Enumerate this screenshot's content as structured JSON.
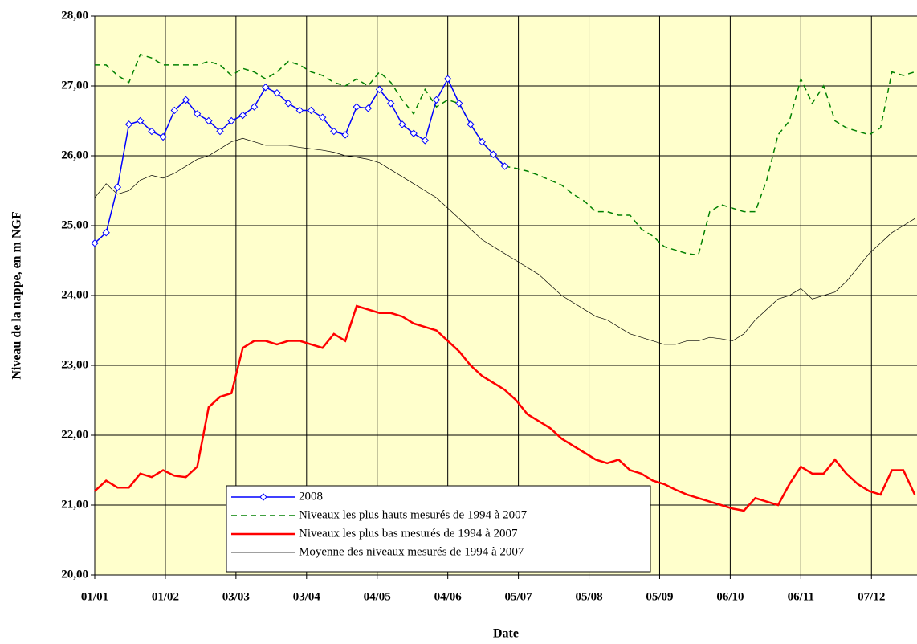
{
  "chart_data": {
    "type": "line",
    "xlabel": "Date",
    "ylabel": "Niveau de la nappe, en m NGF",
    "x": [
      0,
      5,
      10,
      15,
      20,
      25,
      30,
      35,
      40,
      45,
      50,
      55,
      60,
      65,
      70,
      75,
      80,
      85,
      90,
      95,
      100,
      105,
      110,
      115,
      120,
      125,
      130,
      135,
      140,
      145,
      150,
      155,
      160,
      165,
      170,
      175,
      180,
      185,
      190,
      195,
      200,
      205,
      210,
      215,
      220,
      225,
      230,
      235,
      240,
      245,
      250,
      255,
      260,
      265,
      270,
      275,
      280,
      285,
      290,
      295,
      300,
      305,
      310,
      315,
      320,
      325,
      330,
      335,
      340,
      345,
      350,
      355,
      360
    ],
    "xlim": [
      0,
      361
    ],
    "xticks": [
      {
        "value": 0,
        "label": "01/01"
      },
      {
        "value": 31,
        "label": "01/02"
      },
      {
        "value": 62,
        "label": "03/03"
      },
      {
        "value": 93,
        "label": "03/04"
      },
      {
        "value": 124,
        "label": "04/05"
      },
      {
        "value": 155,
        "label": "04/06"
      },
      {
        "value": 186,
        "label": "05/07"
      },
      {
        "value": 217,
        "label": "05/08"
      },
      {
        "value": 248,
        "label": "05/09"
      },
      {
        "value": 279,
        "label": "06/10"
      },
      {
        "value": 310,
        "label": "06/11"
      },
      {
        "value": 341,
        "label": "07/12"
      }
    ],
    "ylim": [
      20,
      28
    ],
    "yticks": [
      {
        "value": 20,
        "label": "20,00"
      },
      {
        "value": 21,
        "label": "21,00"
      },
      {
        "value": 22,
        "label": "22,00"
      },
      {
        "value": 23,
        "label": "23,00"
      },
      {
        "value": 24,
        "label": "24,00"
      },
      {
        "value": 25,
        "label": "25,00"
      },
      {
        "value": 26,
        "label": "26,00"
      },
      {
        "value": 27,
        "label": "27,00"
      },
      {
        "value": 28,
        "label": "28,00"
      }
    ],
    "grid": true,
    "background": "#ffffcc",
    "legend": "lower center",
    "series": [
      {
        "name": "2008",
        "color": "#0000ff",
        "style": "solid",
        "width": 1.5,
        "marker": "diamond",
        "values": [
          24.75,
          24.9,
          25.55,
          26.45,
          26.5,
          26.35,
          26.27,
          26.65,
          26.8,
          26.6,
          26.5,
          26.35,
          26.5,
          26.58,
          26.7,
          26.98,
          26.9,
          26.75,
          26.65,
          26.65,
          26.55,
          26.35,
          26.3,
          26.7,
          26.68,
          26.95,
          26.75,
          26.45,
          26.32,
          26.22,
          26.8,
          27.1,
          26.75,
          26.45,
          26.2,
          26.02,
          25.85,
          null,
          null,
          null,
          null,
          null,
          null,
          null,
          null,
          null,
          null,
          null,
          null,
          null,
          null,
          null,
          null,
          null,
          null,
          null,
          null,
          null,
          null,
          null,
          null,
          null,
          null,
          null,
          null,
          null,
          null,
          null,
          null,
          null,
          null,
          null,
          null
        ]
      },
      {
        "name": "Niveaux les plus hauts mesurés de 1994 à 2007",
        "color": "#008000",
        "style": "dashed",
        "width": 1.5,
        "values": [
          27.3,
          27.3,
          27.15,
          27.05,
          27.45,
          27.4,
          27.3,
          27.3,
          27.3,
          27.3,
          27.35,
          27.3,
          27.15,
          27.25,
          27.2,
          27.1,
          27.2,
          27.35,
          27.3,
          27.2,
          27.15,
          27.05,
          27.0,
          27.1,
          27.0,
          27.2,
          27.05,
          26.8,
          26.6,
          26.95,
          26.7,
          26.8,
          26.75,
          26.45,
          26.2,
          26.02,
          25.85,
          25.82,
          25.78,
          25.72,
          25.65,
          25.58,
          25.45,
          25.35,
          25.2,
          25.2,
          25.15,
          25.15,
          24.95,
          24.85,
          24.7,
          24.65,
          24.6,
          24.58,
          25.2,
          25.3,
          25.25,
          25.2,
          25.2,
          25.65,
          26.3,
          26.5,
          27.1,
          26.75,
          27.0,
          26.5,
          26.4,
          26.35,
          26.3,
          26.4,
          27.2,
          27.15,
          27.2
        ]
      },
      {
        "name": "Niveaux les plus bas mesurés de 1994 à 2007",
        "color": "#ff0000",
        "style": "solid",
        "width": 2.5,
        "values": [
          21.2,
          21.35,
          21.25,
          21.25,
          21.45,
          21.4,
          21.5,
          21.42,
          21.4,
          21.55,
          22.4,
          22.55,
          22.6,
          23.25,
          23.35,
          23.35,
          23.3,
          23.35,
          23.35,
          23.3,
          23.25,
          23.45,
          23.35,
          23.85,
          23.8,
          23.75,
          23.75,
          23.7,
          23.6,
          23.55,
          23.5,
          23.35,
          23.2,
          23.0,
          22.85,
          22.75,
          22.65,
          22.5,
          22.3,
          22.2,
          22.1,
          21.95,
          21.85,
          21.75,
          21.65,
          21.6,
          21.65,
          21.5,
          21.45,
          21.35,
          21.3,
          21.22,
          21.15,
          21.1,
          21.05,
          21.0,
          20.95,
          20.92,
          21.1,
          21.05,
          21.0,
          21.3,
          21.55,
          21.45,
          21.45,
          21.65,
          21.45,
          21.3,
          21.2,
          21.15,
          21.5,
          21.5,
          21.15
        ]
      },
      {
        "name": "Moyenne des niveaux mesurés de 1994 à 2007",
        "color": "#000000",
        "style": "solid",
        "width": 0.7,
        "values": [
          25.4,
          25.6,
          25.45,
          25.5,
          25.65,
          25.72,
          25.68,
          25.75,
          25.85,
          25.95,
          26.0,
          26.1,
          26.2,
          26.25,
          26.2,
          26.15,
          26.15,
          26.15,
          26.12,
          26.1,
          26.08,
          26.05,
          26.0,
          25.98,
          25.95,
          25.9,
          25.8,
          25.7,
          25.6,
          25.5,
          25.4,
          25.25,
          25.1,
          24.95,
          24.8,
          24.7,
          24.6,
          24.5,
          24.4,
          24.3,
          24.15,
          24.0,
          23.9,
          23.8,
          23.7,
          23.65,
          23.55,
          23.45,
          23.4,
          23.35,
          23.3,
          23.3,
          23.35,
          23.35,
          23.4,
          23.38,
          23.35,
          23.45,
          23.65,
          23.8,
          23.95,
          24.0,
          24.1,
          23.95,
          24.0,
          24.05,
          24.2,
          24.4,
          24.6,
          24.75,
          24.9,
          25.0,
          25.1
        ]
      }
    ]
  }
}
